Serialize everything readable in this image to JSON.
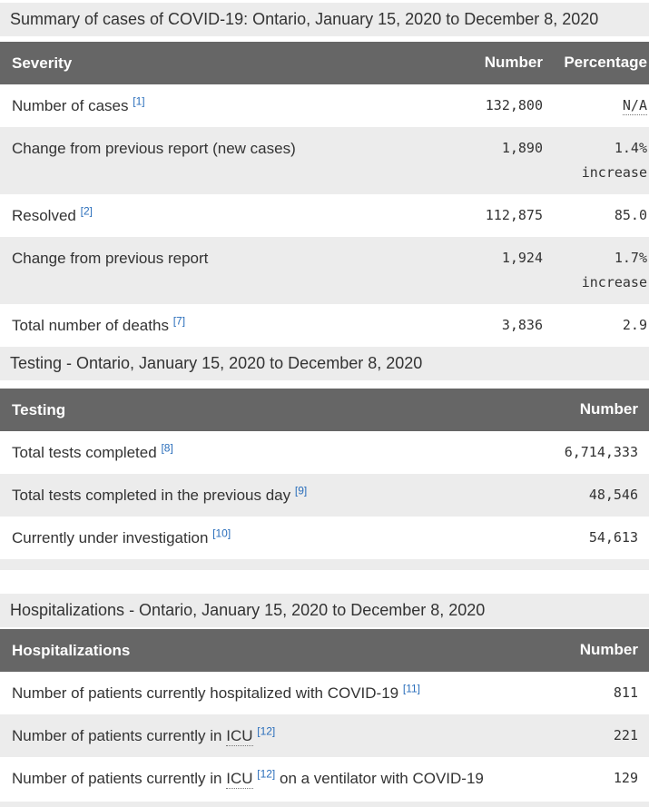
{
  "page": {
    "title": "Summary of cases of COVID-19: Ontario, January 15, 2020 to December 8, 2020"
  },
  "colors": {
    "table_header_bg": "#666666",
    "table_header_text": "#ffffff",
    "alt_row_bg": "#ececec",
    "heading_strip_bg": "#ececec",
    "body_text": "#333333",
    "footnote_link": "#2a6ebb"
  },
  "severity_table": {
    "columns": {
      "c1": "Severity",
      "c2": "Number",
      "c3": "Percentage"
    },
    "rows": [
      {
        "label": "Number of cases",
        "ref": "[1]",
        "number": "132,800",
        "pct1": "N/A",
        "pct2": ""
      },
      {
        "label": "Change from previous report (new cases)",
        "ref": "",
        "number": "1,890",
        "pct1": "1.4%",
        "pct2": "increase"
      },
      {
        "label": "Resolved",
        "ref": "[2]",
        "number": "112,875",
        "pct1": "85.0",
        "pct2": ""
      },
      {
        "label": "Change from previous report",
        "ref": "",
        "number": "1,924",
        "pct1": "1.7%",
        "pct2": "increase"
      },
      {
        "label": "Total number of deaths",
        "ref": "[7]",
        "number": "3,836",
        "pct1": "2.9",
        "pct2": ""
      }
    ]
  },
  "testing_section": {
    "heading": "Testing - Ontario, January 15, 2020 to December 8, 2020",
    "columns": {
      "c1": "Testing",
      "c2": "Number"
    },
    "rows": [
      {
        "label": "Total tests completed",
        "ref": "[8]",
        "number": "6,714,333"
      },
      {
        "label": "Total tests completed in the previous day",
        "ref": "[9]",
        "number": "48,546"
      },
      {
        "label": "Currently under investigation",
        "ref": "[10]",
        "number": "54,613"
      }
    ]
  },
  "hospitalizations_section": {
    "heading": "Hospitalizations - Ontario, January 15, 2020 to December 8, 2020",
    "columns": {
      "c1": "Hospitalizations",
      "c2": "Number"
    },
    "rows": [
      {
        "pre": "Number of patients currently hospitalized with COVID-19",
        "abbr": "",
        "ref": "[11]",
        "post": "",
        "number": "811"
      },
      {
        "pre": "Number of patients currently in",
        "abbr": "ICU",
        "ref": "[12]",
        "post": "",
        "number": "221"
      },
      {
        "pre": "Number of patients currently in",
        "abbr": "ICU",
        "ref": "[12]",
        "post": "on a ventilator with COVID-19",
        "number": "129"
      }
    ]
  }
}
